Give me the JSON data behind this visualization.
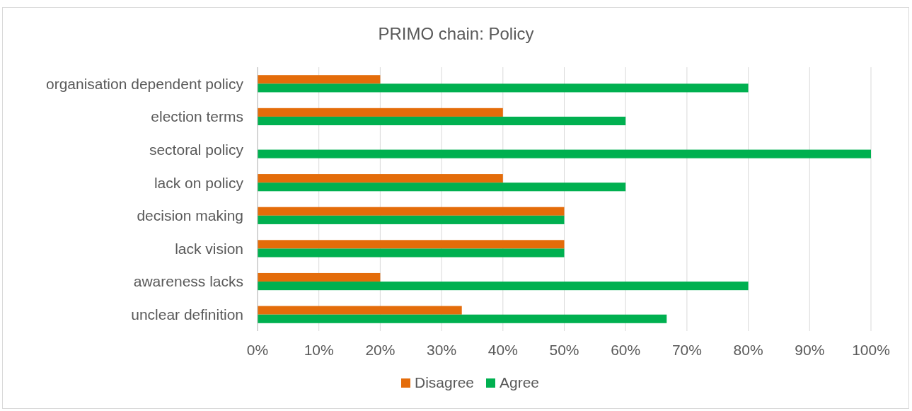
{
  "chart_data": {
    "type": "bar",
    "orientation": "horizontal",
    "title": "PRIMO chain: Policy",
    "categories": [
      "organisation dependent policy",
      "election terms",
      "sectoral policy",
      "lack on policy",
      "decision making",
      "lack vision",
      "awareness lacks",
      "unclear definition"
    ],
    "series": [
      {
        "name": "Disagree",
        "color": "#e46c0a",
        "values": [
          20,
          40,
          0,
          40,
          50,
          50,
          20,
          33.3
        ]
      },
      {
        "name": "Agree",
        "color": "#00b050",
        "values": [
          80,
          60,
          100,
          60,
          50,
          50,
          80,
          66.7
        ]
      }
    ],
    "xlim": [
      0,
      100
    ],
    "xticks": [
      {
        "value": 0,
        "label": "0%"
      },
      {
        "value": 10,
        "label": "10%"
      },
      {
        "value": 20,
        "label": "20%"
      },
      {
        "value": 30,
        "label": "30%"
      },
      {
        "value": 40,
        "label": "40%"
      },
      {
        "value": 50,
        "label": "50%"
      },
      {
        "value": 60,
        "label": "60%"
      },
      {
        "value": 70,
        "label": "70%"
      },
      {
        "value": 80,
        "label": "80%"
      },
      {
        "value": 90,
        "label": "90%"
      },
      {
        "value": 100,
        "label": "100%"
      }
    ],
    "grid": "x",
    "legend": "bottom"
  }
}
